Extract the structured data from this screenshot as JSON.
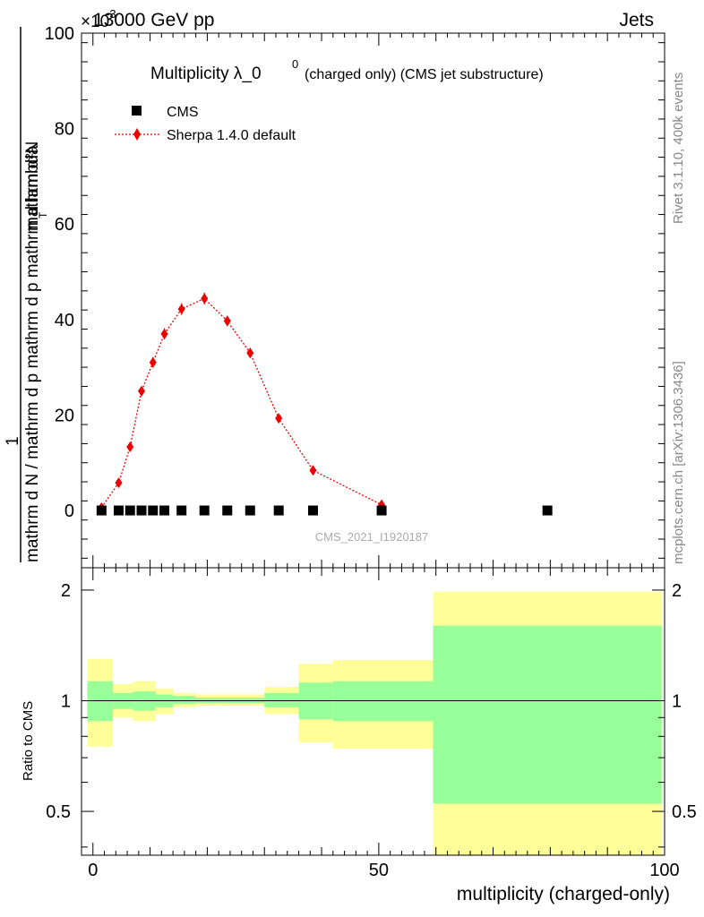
{
  "header": {
    "left": "13000 GeV pp",
    "right": "Jets",
    "exponent": "×10",
    "exponent_power": "-3"
  },
  "side": {
    "rivet": "Rivet 3.1.10,  400k events",
    "mcplots": "mcplots.cern.ch [arXiv:1306.3436]"
  },
  "watermark": "CMS_2021_I1920187",
  "colors": {
    "mc": "#ee0000",
    "data": "#000000",
    "band_inner": "#99ff99",
    "band_outer": "#ffff99"
  },
  "chart_data": [
    {
      "type": "scatter",
      "title": "Multiplicity λ_0^0",
      "title_main": "Multiplicity λ_0",
      "title_sup": "0",
      "title_suffix": "(charged only) (CMS jet substructure)",
      "ylabel": "1 / mathrm d N / mathrm d p_T mathrm d N / mathrm d p_T mathrm d lambda",
      "ylabel_num": "mathrm d²N",
      "ylabel_sub": "T",
      "ylabel_one": "1",
      "ylabel_den": "mathrm d N / mathrm d p  mathrm d p  mathrm d lambda",
      "ylim": [
        -12,
        100
      ],
      "xlim": [
        -2,
        100
      ],
      "yticks": [
        0,
        20,
        40,
        60,
        80,
        100
      ],
      "ytick_labels": [
        "0",
        "20",
        "40",
        "60",
        "80",
        "100"
      ],
      "legend": [
        {
          "label": "CMS",
          "marker": "square"
        },
        {
          "label": "Sherpa 1.4.0 default",
          "marker": "diamond"
        }
      ],
      "series": [
        {
          "name": "CMS",
          "x": [
            1.5,
            4.5,
            6.5,
            8.5,
            10.5,
            12.5,
            15.5,
            19.5,
            23.5,
            27.5,
            32.5,
            38.5,
            50.5,
            79.5
          ],
          "y": [
            0,
            0,
            0,
            0,
            0,
            0,
            0,
            0,
            0,
            0,
            0,
            0,
            0,
            0
          ]
        },
        {
          "name": "Sherpa 1.4.0 default",
          "x": [
            1.5,
            4.5,
            6.5,
            8.5,
            10.5,
            12.5,
            15.5,
            19.5,
            23.5,
            27.5,
            32.5,
            38.5,
            50.5
          ],
          "y": [
            0.6,
            5.8,
            13.3,
            25.0,
            31.0,
            37.0,
            42.2,
            44.4,
            39.7,
            33.0,
            19.3,
            8.4,
            1.2
          ],
          "err": [
            0.3,
            0.5,
            0.8,
            1.0,
            1.1,
            1.2,
            1.2,
            1.2,
            1.1,
            1.0,
            0.8,
            0.5,
            0.3
          ]
        }
      ]
    },
    {
      "type": "area",
      "ylabel": "Ratio to CMS",
      "xlabel": "multiplicity (charged-only)",
      "ylim": [
        0.38,
        2.3
      ],
      "xlim": [
        -2,
        100
      ],
      "xticks": [
        0,
        50,
        100
      ],
      "xtick_labels": [
        "0",
        "50",
        "100"
      ],
      "yticks": [
        0.5,
        1,
        2
      ],
      "ytick_labels": [
        "0.5",
        "1",
        "2"
      ],
      "bins": [
        {
          "x0": -1,
          "x1": 3.5,
          "inner": [
            0.88,
            1.13
          ],
          "outer": [
            0.75,
            1.3
          ]
        },
        {
          "x0": 3.5,
          "x1": 7,
          "inner": [
            0.95,
            1.05
          ],
          "outer": [
            0.9,
            1.11
          ]
        },
        {
          "x0": 7,
          "x1": 11,
          "inner": [
            0.94,
            1.06
          ],
          "outer": [
            0.88,
            1.13
          ]
        },
        {
          "x0": 11,
          "x1": 14,
          "inner": [
            0.96,
            1.04
          ],
          "outer": [
            0.92,
            1.08
          ]
        },
        {
          "x0": 14,
          "x1": 18,
          "inner": [
            0.98,
            1.03
          ],
          "outer": [
            0.96,
            1.05
          ]
        },
        {
          "x0": 18,
          "x1": 22,
          "inner": [
            0.985,
            1.02
          ],
          "outer": [
            0.97,
            1.04
          ]
        },
        {
          "x0": 22,
          "x1": 30,
          "inner": [
            0.985,
            1.02
          ],
          "outer": [
            0.97,
            1.04
          ]
        },
        {
          "x0": 30,
          "x1": 36,
          "inner": [
            0.96,
            1.05
          ],
          "outer": [
            0.92,
            1.09
          ]
        },
        {
          "x0": 36,
          "x1": 42,
          "inner": [
            0.89,
            1.12
          ],
          "outer": [
            0.77,
            1.26
          ]
        },
        {
          "x0": 42,
          "x1": 59.5,
          "inner": [
            0.88,
            1.13
          ],
          "outer": [
            0.74,
            1.29
          ]
        },
        {
          "x0": 59.5,
          "x1": 99.5,
          "inner": [
            0.525,
            1.6
          ],
          "outer": [
            0.38,
            1.98
          ]
        }
      ]
    }
  ]
}
